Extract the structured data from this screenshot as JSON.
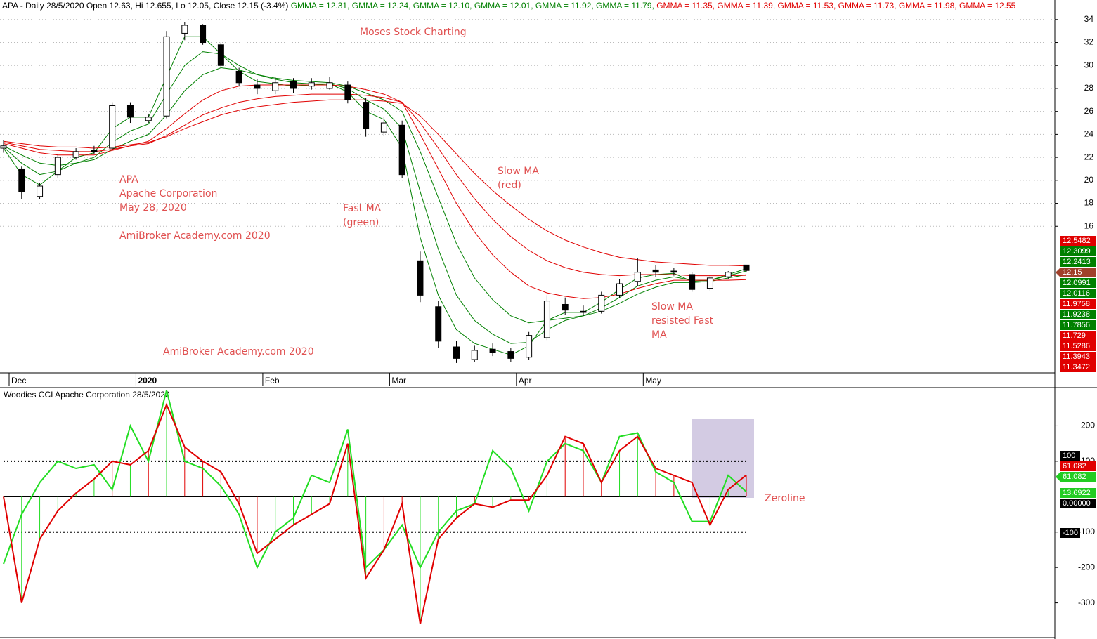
{
  "chart_data": [
    {
      "type": "candlestick",
      "header_items": [
        {
          "label": "APA - Daily 28/5/2020 Open 12.63, Hi 12.655, Lo 12.05, Close 12.15 (-3.4%) ",
          "color": "#000000"
        },
        {
          "label": "GMMA = 12.31, ",
          "color": "#008000"
        },
        {
          "label": "GMMA = 12.24, ",
          "color": "#008000"
        },
        {
          "label": "GMMA = 12.10, ",
          "color": "#008000"
        },
        {
          "label": "GMMA = 12.01, ",
          "color": "#008000"
        },
        {
          "label": "GMMA = 11.92, ",
          "color": "#008000"
        },
        {
          "label": "GMMA = 11.79, ",
          "color": "#008000"
        },
        {
          "label": "GMMA = 11.35, ",
          "color": "#e00000"
        },
        {
          "label": "GMMA = 11.39, ",
          "color": "#e00000"
        },
        {
          "label": "GMMA = 11.53, ",
          "color": "#e00000"
        },
        {
          "label": "GMMA = 11.73, ",
          "color": "#e00000"
        },
        {
          "label": "GMMA = 11.98, ",
          "color": "#e00000"
        },
        {
          "label": "GMMA = 12.55",
          "color": "#e00000"
        }
      ],
      "categories": [
        "Dec",
        null,
        null,
        null,
        null,
        null,
        null,
        "2020",
        null,
        null,
        null,
        null,
        null,
        null,
        "Feb",
        null,
        null,
        null,
        null,
        null,
        null,
        "Mar",
        null,
        null,
        null,
        null,
        null,
        null,
        "Apr",
        null,
        null,
        null,
        null,
        null,
        null,
        "May",
        null,
        null,
        null,
        null,
        null,
        null
      ],
      "open": [
        22.8,
        21,
        18.6,
        20.5,
        22,
        22.6,
        22.8,
        26.5,
        25.2,
        25.6,
        32.8,
        33.5,
        31.8,
        29.5,
        28.3,
        27.8,
        28.6,
        28.2,
        28,
        28.3,
        26.8,
        24.2,
        24.8,
        13,
        9,
        5.5,
        4.4,
        5.3,
        5.1,
        4.6,
        6.3,
        9.2,
        8.6,
        8.6,
        10,
        11.2,
        12.2,
        12.1,
        11.8,
        10.6,
        11.6,
        12.63
      ],
      "high": [
        23.5,
        21.2,
        19.8,
        22.3,
        22.8,
        23,
        26.8,
        26.8,
        25.8,
        33,
        33.8,
        33.6,
        32,
        29.8,
        28.8,
        29,
        28.9,
        28.9,
        29,
        28.6,
        27.2,
        25.5,
        25.2,
        13.8,
        9.5,
        6,
        5.6,
        5.8,
        5.4,
        6.8,
        10,
        9.8,
        9.1,
        10.3,
        11.4,
        13.2,
        12.6,
        12.4,
        12,
        11.8,
        12.1,
        12.655
      ],
      "low": [
        22.4,
        18.4,
        18.4,
        20.2,
        21.8,
        22.3,
        22.6,
        25,
        25,
        25.4,
        32.2,
        31.8,
        29.8,
        28.2,
        27.5,
        27.5,
        27.6,
        27.9,
        27.9,
        26.7,
        23.8,
        23.9,
        20.2,
        9.4,
        5.4,
        4.1,
        4.2,
        4.7,
        4.2,
        4.4,
        6.1,
        8.3,
        8.2,
        8.4,
        9.8,
        10.8,
        11.6,
        11.7,
        10.3,
        10.4,
        11.4,
        12.05
      ],
      "close": [
        23,
        19,
        19.5,
        22,
        22.5,
        22.5,
        26.5,
        25.5,
        25.5,
        32.5,
        33.5,
        32,
        30,
        28.5,
        28,
        28.5,
        28,
        28.5,
        28.5,
        27,
        24.5,
        25,
        20.5,
        10,
        6,
        4.5,
        5.2,
        5,
        4.5,
        6.5,
        9.5,
        8.7,
        8.5,
        10,
        11,
        12,
        12,
        12,
        10.5,
        11.5,
        12,
        12.15
      ],
      "series": [
        {
          "color": "#008000",
          "values": [
            22.8,
            20.5,
            19.6,
            20.8,
            22,
            22.4,
            24.5,
            25.5,
            25.5,
            29,
            32.5,
            32.5,
            31,
            29.5,
            28.6,
            28.4,
            28.2,
            28.3,
            28.4,
            27.7,
            26,
            25.3,
            22.8,
            15,
            10,
            7,
            5.8,
            5.3,
            4.8,
            5.6,
            7.8,
            8.5,
            8.5,
            9.4,
            10.5,
            11.5,
            11.8,
            11.9,
            11.2,
            11.3,
            11.8,
            12.31
          ]
        },
        {
          "color": "#008000",
          "values": [
            22.9,
            21.5,
            20.5,
            20.8,
            21.5,
            22,
            23.3,
            24.3,
            24.9,
            27.5,
            30,
            31.2,
            31,
            30,
            29.2,
            28.8,
            28.5,
            28.4,
            28.4,
            28,
            27,
            26.2,
            24.5,
            19,
            14,
            10,
            7.8,
            6.6,
            5.8,
            5.9,
            7,
            7.8,
            8.2,
            8.9,
            9.8,
            10.8,
            11.3,
            11.6,
            11.3,
            11.3,
            11.7,
            12.1
          ]
        },
        {
          "color": "#008000",
          "values": [
            23,
            22.2,
            21.5,
            21.3,
            21.5,
            21.8,
            22.7,
            23.4,
            24,
            25.7,
            27.8,
            29.2,
            29.8,
            29.6,
            29.2,
            28.9,
            28.7,
            28.6,
            28.5,
            28.2,
            27.6,
            27,
            26,
            22.5,
            18.5,
            14.5,
            11.5,
            9.6,
            8.2,
            7.6,
            7.8,
            8,
            8.2,
            8.6,
            9.3,
            10.1,
            10.7,
            11.1,
            11.1,
            11.2,
            11.5,
            11.79
          ]
        },
        {
          "color": "#e00000",
          "values": [
            23.2,
            22.8,
            22.4,
            22.2,
            22.2,
            22.2,
            22.6,
            23,
            23.4,
            24.5,
            25.8,
            27,
            27.8,
            28.2,
            28.3,
            28.3,
            28.3,
            28.3,
            28.3,
            28.2,
            27.9,
            27.5,
            26.8,
            24,
            21,
            18,
            15.5,
            13.5,
            12,
            10.8,
            10.2,
            9.9,
            9.7,
            9.8,
            10.1,
            10.6,
            11,
            11.3,
            11.3,
            11.3,
            11.3,
            11.35
          ]
        },
        {
          "color": "#e00000",
          "values": [
            23.3,
            23,
            22.7,
            22.6,
            22.5,
            22.5,
            22.7,
            23,
            23.2,
            23.9,
            24.8,
            25.7,
            26.3,
            26.8,
            27.1,
            27.3,
            27.4,
            27.5,
            27.5,
            27.5,
            27.4,
            27.2,
            26.8,
            25,
            22.8,
            20.5,
            18.4,
            16.6,
            15.1,
            13.9,
            13,
            12.4,
            12,
            11.8,
            11.7,
            11.8,
            11.8,
            11.8,
            11.7,
            11.7,
            11.7,
            11.73
          ]
        },
        {
          "color": "#e00000",
          "values": [
            23.4,
            23.2,
            23,
            22.9,
            22.9,
            22.8,
            22.9,
            23.1,
            23.3,
            23.8,
            24.5,
            25.1,
            25.7,
            26.1,
            26.4,
            26.6,
            26.8,
            26.9,
            27,
            27,
            27,
            26.9,
            26.7,
            25.6,
            24,
            22.3,
            20.6,
            19.1,
            17.8,
            16.6,
            15.6,
            14.8,
            14.2,
            13.7,
            13.3,
            13.1,
            12.9,
            12.8,
            12.7,
            12.6,
            12.6,
            12.55
          ]
        }
      ],
      "ylim": [
        3.3,
        35.7
      ],
      "yticks": [
        16,
        18,
        20,
        22,
        24,
        26,
        28,
        30,
        32,
        34
      ],
      "grid": true,
      "right_tags": [
        {
          "value": 12.5482,
          "color": "#e00000"
        },
        {
          "value": 12.3099,
          "color": "#008000"
        },
        {
          "value": 12.2413,
          "color": "#008000"
        },
        {
          "value": 12.15,
          "color": "#a0402a"
        },
        {
          "value": 12.0991,
          "color": "#008000"
        },
        {
          "value": 12.0116,
          "color": "#008000"
        },
        {
          "value": 11.9758,
          "color": "#e00000"
        },
        {
          "value": 11.9238,
          "color": "#008000"
        },
        {
          "value": 11.7856,
          "color": "#008000"
        },
        {
          "value": 11.729,
          "color": "#e00000"
        },
        {
          "value": 11.5286,
          "color": "#e00000"
        },
        {
          "value": 11.3943,
          "color": "#e00000"
        },
        {
          "value": 11.3472,
          "color": "#e00000"
        }
      ],
      "annotations": [
        [
          "Moses Stock Charting"
        ],
        [
          "APA",
          "Apache Corporation",
          "May 28, 2020"
        ],
        [
          "AmiBroker Academy.com  2020"
        ],
        [
          "Fast MA",
          "(green)"
        ],
        [
          "Slow MA",
          "(red)"
        ],
        [
          "AmiBroker Academy.com  2020"
        ],
        [
          "Slow MA",
          "resisted Fast",
          "MA"
        ]
      ]
    },
    {
      "type": "line",
      "title": "Woodies CCI  Apache Corporation 28/5/2020",
      "series": [
        {
          "color": "#e00000",
          "values": [
            0,
            -300,
            -120,
            -40,
            10,
            50,
            100,
            90,
            130,
            260,
            140,
            100,
            70,
            -20,
            -160,
            -120,
            -80,
            -50,
            -20,
            150,
            -230,
            -150,
            -20,
            -360,
            -120,
            -60,
            -20,
            -30,
            -10,
            -10,
            60,
            170,
            150,
            40,
            130,
            170,
            80,
            60,
            40,
            -80,
            20,
            61.082
          ]
        },
        {
          "color": "#22dd22",
          "values": [
            -190,
            -50,
            40,
            100,
            80,
            90,
            20,
            200,
            100,
            300,
            100,
            80,
            30,
            -50,
            -200,
            -100,
            -60,
            60,
            40,
            190,
            -200,
            -150,
            -80,
            -200,
            -100,
            -40,
            -20,
            130,
            80,
            -40,
            100,
            150,
            130,
            40,
            170,
            180,
            70,
            40,
            -70,
            -70,
            60,
            13.6922
          ]
        }
      ],
      "ylim": [
        -398,
        306
      ],
      "yticks": [
        -300,
        -200,
        -100,
        100,
        200
      ],
      "right_tags": [
        {
          "value": 100,
          "color": "#000000"
        },
        {
          "value": 61.082,
          "color": "#e00000"
        },
        {
          "value": 61.082,
          "color": "#22cc22"
        },
        {
          "value": 13.6922,
          "color": "#22cc22"
        },
        {
          "value": 0,
          "label": "0.00000",
          "color": "#000000"
        },
        {
          "value": -100,
          "color": "#000000"
        }
      ],
      "annotations": [
        [
          "Zeroline"
        ]
      ]
    }
  ]
}
